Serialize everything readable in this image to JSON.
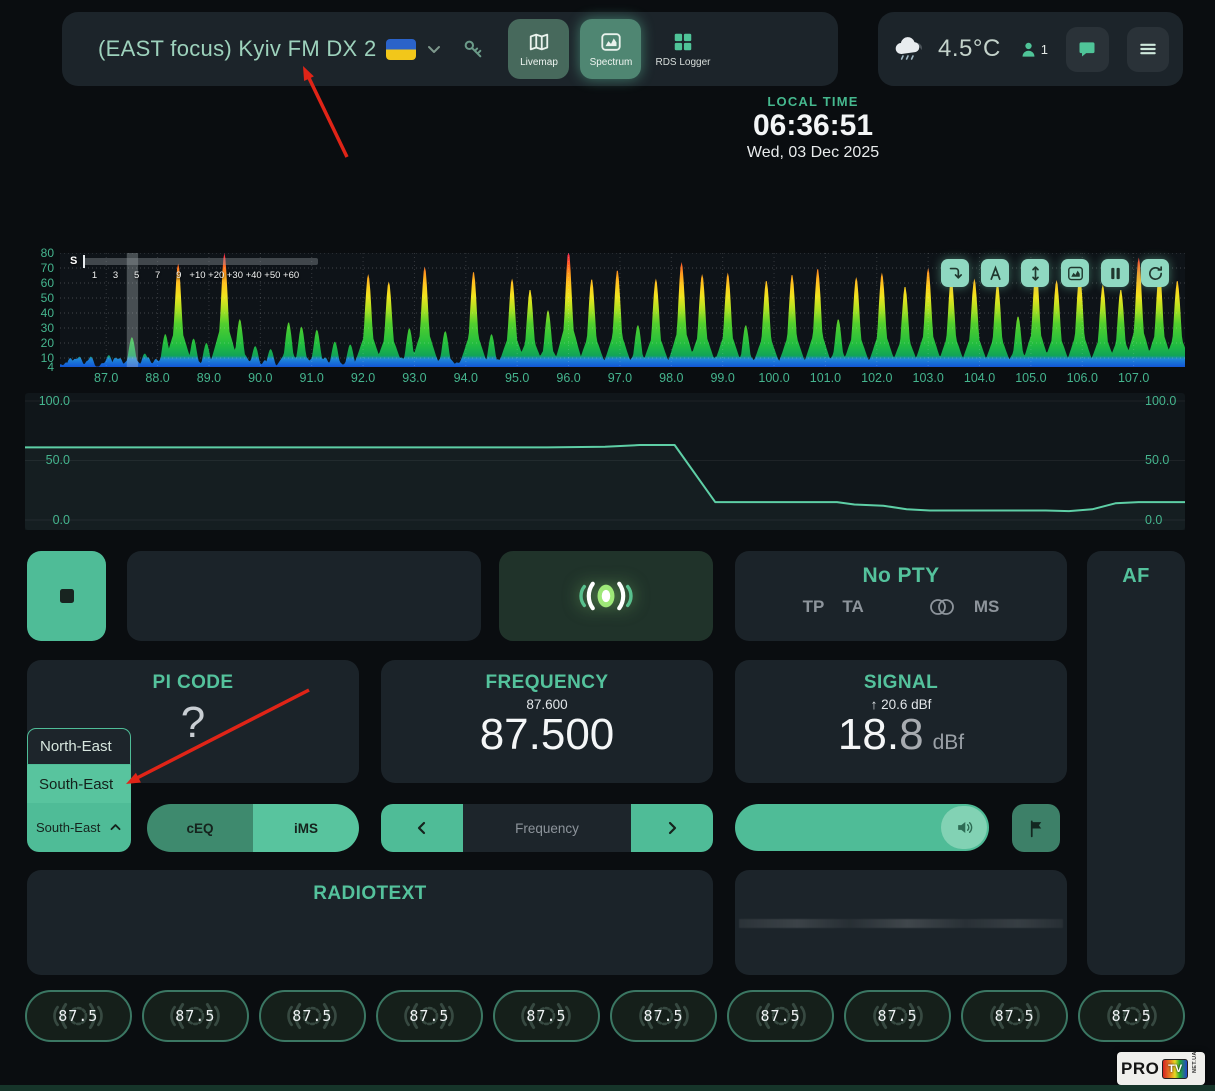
{
  "theme": {
    "accent": "#4fbc97",
    "accent_text": "#54c29c",
    "page_bg": "#0a0d10",
    "card_bg": "#1b2329",
    "header_bg": "#1c242a",
    "tick_color": "#45b58e",
    "red_annotation": "#e02417"
  },
  "header": {
    "title": "(EAST focus) Kyiv FM DX 2",
    "flag_icon": "ukraine-flag-icon",
    "dropdown_icon": "chevron-down-icon",
    "key_icon": "key-icon",
    "nav": [
      {
        "label": "Livemap",
        "icon": "map-icon",
        "active": false,
        "flat": false
      },
      {
        "label": "Spectrum",
        "icon": "chart-icon",
        "active": true,
        "flat": false
      },
      {
        "label": "RDS Logger",
        "icon": "grid-icon",
        "active": false,
        "flat": true
      }
    ],
    "weather": {
      "icon": "cloud-rain-icon",
      "temperature": "4.5°C"
    },
    "listeners": {
      "icon": "person-icon",
      "count": "1"
    },
    "chat_icon": "chat-icon",
    "menu_icon": "hamburger-icon"
  },
  "clock": {
    "label": "LOCAL TIME",
    "time": "06:36:51",
    "date": "Wed, 03 Dec 2025"
  },
  "smeter": {
    "label": "S",
    "ticks": [
      "1",
      "3",
      "5",
      "7",
      "9",
      "+10",
      "+20",
      "+30",
      "+40",
      "+50",
      "+60"
    ],
    "tick_pos_pct": [
      4.5,
      13.5,
      22.5,
      31.5,
      40.5,
      48.5,
      56.5,
      64.5,
      72.5,
      80.5,
      88.5
    ],
    "fill_pct": 45
  },
  "spectrum_toolbar": [
    "corner-down-arrow-icon",
    "letter-a-icon",
    "arrows-vertical-icon",
    "chart-icon",
    "pause-icon",
    "refresh-icon"
  ],
  "chart_data": [
    {
      "id": "fm-band-spectrum",
      "type": "area",
      "x_range": [
        86.1,
        108.0
      ],
      "y_range": [
        4,
        80
      ],
      "x_ticks": [
        "87.0",
        "88.0",
        "89.0",
        "90.0",
        "91.0",
        "92.0",
        "93.0",
        "94.0",
        "95.0",
        "96.0",
        "97.0",
        "98.0",
        "99.0",
        "100.0",
        "101.0",
        "102.0",
        "103.0",
        "104.0",
        "105.0",
        "106.0",
        "107.0"
      ],
      "y_ticks": [
        80,
        70,
        60,
        50,
        40,
        30,
        20,
        10,
        4
      ],
      "tuned_band_mhz": [
        87.4,
        87.62
      ],
      "noise_floor": 9,
      "peaks": [
        [
          86.3,
          10
        ],
        [
          86.7,
          11
        ],
        [
          87.05,
          12
        ],
        [
          87.5,
          24
        ],
        [
          87.75,
          13
        ],
        [
          88.15,
          26
        ],
        [
          88.4,
          73
        ],
        [
          88.7,
          23
        ],
        [
          88.95,
          20
        ],
        [
          89.3,
          80
        ],
        [
          89.6,
          36
        ],
        [
          89.9,
          18
        ],
        [
          90.2,
          16
        ],
        [
          90.55,
          34
        ],
        [
          90.8,
          31
        ],
        [
          91.1,
          29
        ],
        [
          91.45,
          21
        ],
        [
          91.75,
          19
        ],
        [
          92.1,
          66
        ],
        [
          92.5,
          61
        ],
        [
          92.9,
          30
        ],
        [
          93.2,
          71
        ],
        [
          93.6,
          28
        ],
        [
          94.15,
          68
        ],
        [
          94.5,
          26
        ],
        [
          94.9,
          63
        ],
        [
          95.25,
          56
        ],
        [
          95.6,
          42
        ],
        [
          96.0,
          82
        ],
        [
          96.45,
          63
        ],
        [
          96.95,
          69
        ],
        [
          97.35,
          32
        ],
        [
          97.7,
          63
        ],
        [
          98.2,
          74
        ],
        [
          98.6,
          66
        ],
        [
          99.1,
          67
        ],
        [
          99.45,
          32
        ],
        [
          99.85,
          62
        ],
        [
          100.35,
          66
        ],
        [
          100.85,
          70
        ],
        [
          101.25,
          36
        ],
        [
          101.6,
          64
        ],
        [
          102.1,
          67
        ],
        [
          102.55,
          58
        ],
        [
          103.0,
          70
        ],
        [
          103.45,
          64
        ],
        [
          103.9,
          63
        ],
        [
          104.35,
          61
        ],
        [
          104.75,
          38
        ],
        [
          105.1,
          72
        ],
        [
          105.5,
          62
        ],
        [
          105.95,
          67
        ],
        [
          106.4,
          59
        ],
        [
          106.75,
          56
        ],
        [
          107.1,
          77
        ],
        [
          107.5,
          70
        ],
        [
          107.85,
          62
        ]
      ],
      "gradient_top_to_bottom": [
        [
          0,
          "#ff2451"
        ],
        [
          9,
          "#ff5a28"
        ],
        [
          18,
          "#ff9a1e"
        ],
        [
          28,
          "#ffc81e"
        ],
        [
          38,
          "#f0e41e"
        ],
        [
          50,
          "#a8e022"
        ],
        [
          62,
          "#52cf2e"
        ],
        [
          80,
          "#22bd3f"
        ],
        [
          90,
          "#12a457"
        ],
        [
          93,
          "#1f86d8"
        ],
        [
          100,
          "#1156d6"
        ]
      ]
    },
    {
      "id": "signal-history",
      "type": "line",
      "y_range": [
        0,
        100
      ],
      "y_ticks": [
        "100.0",
        "50.0",
        "0.0"
      ],
      "line_color": "#5ecfa6",
      "points": [
        [
          0,
          61
        ],
        [
          10,
          61
        ],
        [
          25,
          61
        ],
        [
          45,
          61
        ],
        [
          50,
          61.5
        ],
        [
          53,
          63
        ],
        [
          56,
          63
        ],
        [
          59.5,
          15
        ],
        [
          70,
          15
        ],
        [
          71.5,
          13
        ],
        [
          74,
          12
        ],
        [
          76,
          9
        ],
        [
          78,
          8
        ],
        [
          88,
          8
        ],
        [
          90,
          7.5
        ],
        [
          92,
          9
        ],
        [
          94,
          14
        ],
        [
          96,
          15
        ],
        [
          100,
          15
        ]
      ]
    }
  ],
  "controls": {
    "stop_icon": "stop-icon",
    "audio_icon": "broadcast-icon",
    "rds": {
      "pty": "No PTY",
      "tp": "TP",
      "ta": "TA",
      "stereo_icon": "stereo-icon",
      "ms": "MS"
    },
    "af_label": "AF"
  },
  "cards": {
    "pi": {
      "label": "PI CODE",
      "value": "?"
    },
    "frequency": {
      "label": "FREQUENCY",
      "previous": "87.600",
      "value": "87.500"
    },
    "signal": {
      "label": "SIGNAL",
      "peak": "↑ 20.6 dBf",
      "value_int": "18.",
      "value_dec": "8",
      "unit": "dBf"
    }
  },
  "antenna_dropdown": {
    "options": [
      "North-East",
      "South-East"
    ],
    "highlighted": "South-East",
    "selected": "South-East",
    "collapse_icon": "chevron-up-icon"
  },
  "toggles": {
    "ceq": "cEQ",
    "ims": "iMS"
  },
  "tuner": {
    "down_icon": "chevron-left-icon",
    "placeholder": "Frequency",
    "up_icon": "chevron-right-icon"
  },
  "volume": {
    "icon": "speaker-icon",
    "level_pct": 100
  },
  "flag_button_icon": "flag-icon",
  "radiotext": {
    "label": "RADIOTEXT"
  },
  "presets": [
    "87.5",
    "87.5",
    "87.5",
    "87.5",
    "87.5",
    "87.5",
    "87.5",
    "87.5",
    "87.5",
    "87.5"
  ],
  "logo": {
    "pro": "PRO",
    "tv": "TV",
    "suffix": "NET.UA"
  }
}
